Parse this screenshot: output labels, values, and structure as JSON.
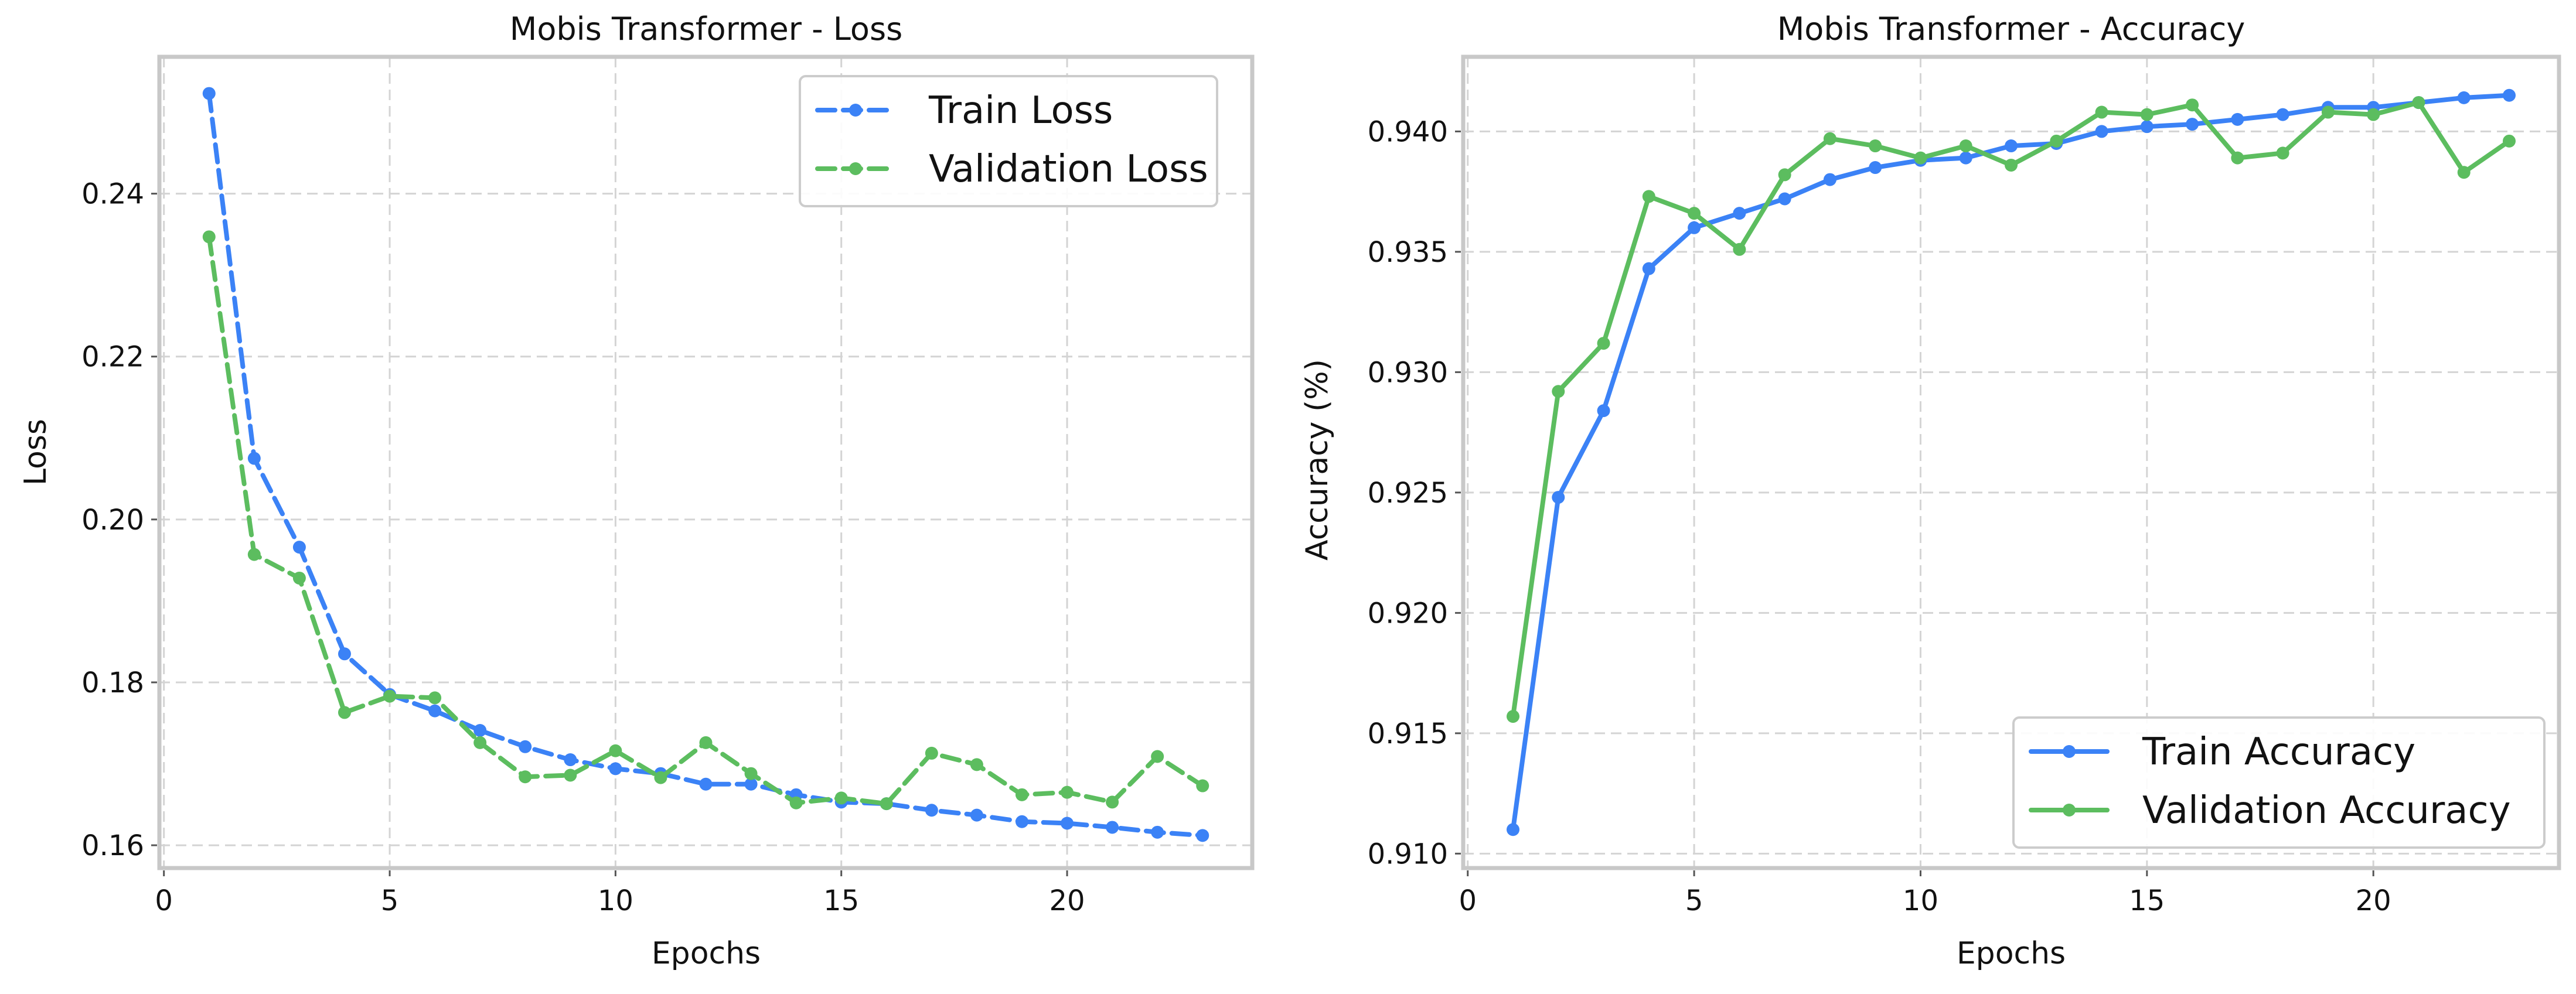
{
  "colors": {
    "train": "#3b82f6",
    "validation": "#5cbd5f"
  },
  "chart_data": [
    {
      "type": "line",
      "title": "Mobis Transformer - Loss",
      "xlabel": "Epochs",
      "ylabel": "Loss",
      "xlim": [
        -0.1,
        24.1
      ],
      "ylim": [
        0.1572,
        0.2568
      ],
      "xticks": [
        0,
        5,
        10,
        15,
        20
      ],
      "yticks": [
        0.16,
        0.18,
        0.2,
        0.22,
        0.24
      ],
      "ytick_labels": [
        "0.16",
        "0.18",
        "0.20",
        "0.22",
        "0.24"
      ],
      "grid": true,
      "legend_position": "top-right",
      "line_style": "dashed",
      "x": [
        1,
        2,
        3,
        4,
        5,
        6,
        7,
        8,
        9,
        10,
        11,
        12,
        13,
        14,
        15,
        16,
        17,
        18,
        19,
        20,
        21,
        22,
        23
      ],
      "series": [
        {
          "name": "Train Loss",
          "color": "#3b82f6",
          "values": [
            0.2523,
            0.2075,
            0.1966,
            0.1835,
            0.1785,
            0.1765,
            0.1741,
            0.1721,
            0.1705,
            0.1694,
            0.1688,
            0.1675,
            0.1675,
            0.1662,
            0.1653,
            0.1651,
            0.1643,
            0.1637,
            0.1629,
            0.1627,
            0.1622,
            0.1616,
            0.1612
          ]
        },
        {
          "name": "Validation Loss",
          "color": "#5cbd5f",
          "values": [
            0.2347,
            0.1957,
            0.1928,
            0.1763,
            0.1783,
            0.1781,
            0.1726,
            0.1684,
            0.1686,
            0.1716,
            0.1683,
            0.1726,
            0.1688,
            0.1652,
            0.1658,
            0.1651,
            0.1713,
            0.1699,
            0.1662,
            0.1665,
            0.1653,
            0.1709,
            0.1673
          ]
        }
      ]
    },
    {
      "type": "line",
      "title": "Mobis Transformer - Accuracy",
      "xlabel": "Epochs",
      "ylabel": "Accuracy (%)",
      "xlim": [
        -0.1,
        24.1
      ],
      "ylim": [
        0.9094,
        0.9431
      ],
      "xticks": [
        0,
        5,
        10,
        15,
        20
      ],
      "yticks": [
        0.91,
        0.915,
        0.92,
        0.925,
        0.93,
        0.935,
        0.94
      ],
      "ytick_labels": [
        "0.910",
        "0.915",
        "0.920",
        "0.925",
        "0.930",
        "0.935",
        "0.940"
      ],
      "grid": true,
      "legend_position": "bottom-right",
      "line_style": "solid",
      "x": [
        1,
        2,
        3,
        4,
        5,
        6,
        7,
        8,
        9,
        10,
        11,
        12,
        13,
        14,
        15,
        16,
        17,
        18,
        19,
        20,
        21,
        22,
        23
      ],
      "series": [
        {
          "name": "Train Accuracy",
          "color": "#3b82f6",
          "values": [
            0.911,
            0.9248,
            0.9284,
            0.9343,
            0.936,
            0.9366,
            0.9372,
            0.938,
            0.9385,
            0.9388,
            0.9389,
            0.9394,
            0.9395,
            0.94,
            0.9402,
            0.9403,
            0.9405,
            0.9407,
            0.941,
            0.941,
            0.9412,
            0.9414,
            0.9415
          ]
        },
        {
          "name": "Validation Accuracy",
          "color": "#5cbd5f",
          "values": [
            0.9157,
            0.9292,
            0.9312,
            0.9373,
            0.9366,
            0.9351,
            0.9382,
            0.9397,
            0.9394,
            0.9389,
            0.9394,
            0.9386,
            0.9396,
            0.9408,
            0.9407,
            0.9411,
            0.9389,
            0.9391,
            0.9408,
            0.9407,
            0.9412,
            0.9383,
            0.9396
          ]
        }
      ]
    }
  ]
}
